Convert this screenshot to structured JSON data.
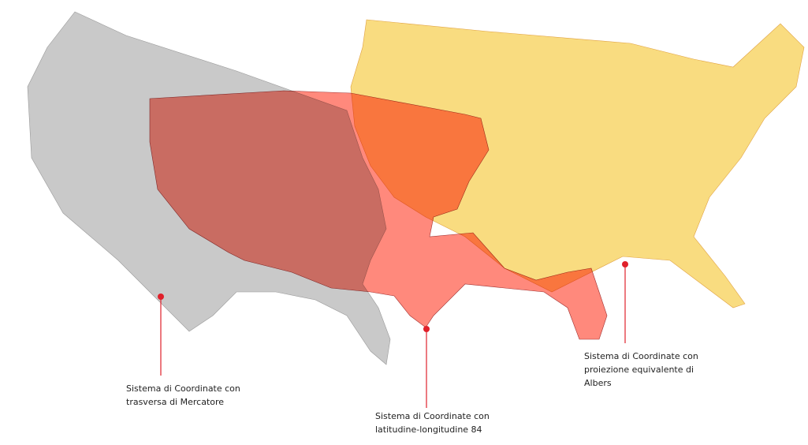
{
  "colors": {
    "mercator": "#c9c9c9",
    "wgs84": "#ff6b5b",
    "albers": "#f9dc80",
    "callout": "#e0202a"
  },
  "callouts": [
    {
      "id": "mercator",
      "text": "Sistema di Coordinate con\ntrasversa di Mercatore"
    },
    {
      "id": "wgs84",
      "text": "Sistema di Coordinate con\nlatitudine-longitudine 84"
    },
    {
      "id": "albers",
      "text": "Sistema di Coordinate con\nproiezione equivalente di\nAlbers"
    }
  ]
}
